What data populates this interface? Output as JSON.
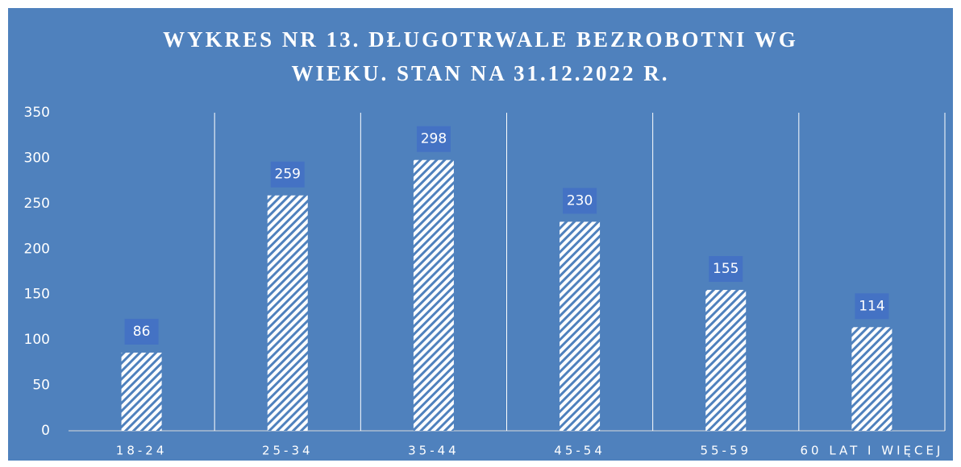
{
  "chart_data": {
    "type": "bar",
    "title": [
      "WYKRES NR 13. DŁUGOTRWALE BEZROBOTNI WG",
      "WIEKU. STAN NA 31.12.2022 R."
    ],
    "categories": [
      "18-24",
      "25-34",
      "35-44",
      "45-54",
      "55-59",
      "60 LAT I WIĘCEJ"
    ],
    "values": [
      86,
      259,
      298,
      230,
      155,
      114
    ],
    "color": "#ffffff",
    "hatch": true,
    "ylim": [
      0,
      350
    ],
    "yticks": [
      0,
      50,
      100,
      150,
      200,
      250,
      300,
      350
    ],
    "grid": "vertical"
  }
}
